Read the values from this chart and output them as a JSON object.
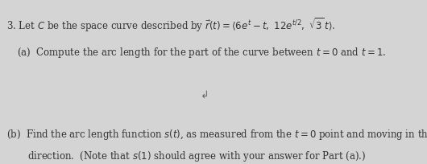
{
  "background_color": "#d4d4d4",
  "line1": "3. Let $C$ be the space curve described by $\\vec{r}(t) = \\langle 6e^t - t,\\ 12e^{t/2},\\ \\sqrt{3}\\,t \\rangle$.",
  "line2": "(a)  Compute the arc length for the part of the curve between $t = 0$ and $t = 1$.",
  "line3": "(b)  Find the arc length function $s(t)$, as measured from the $t = 0$ point and moving in the forward",
  "line4": "       direction.  (Note that $s(1)$ should agree with your answer for Part (a).)",
  "cursor_char": "↲",
  "font_size": 8.5,
  "text_color": "#333333",
  "cursor_color": "#666666"
}
